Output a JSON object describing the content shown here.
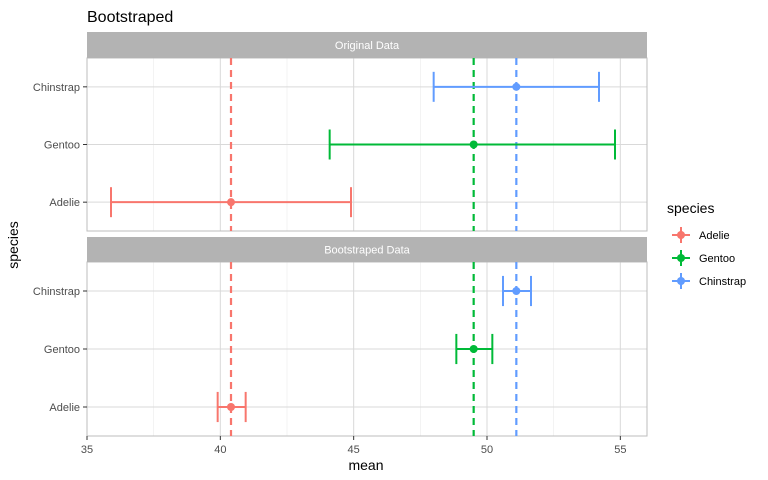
{
  "chart_data": {
    "type": "errorbar",
    "title": "Bootstraped",
    "xlabel": "mean",
    "ylabel": "species",
    "xlim": [
      35,
      56
    ],
    "x_ticks": [
      35,
      40,
      45,
      50,
      55
    ],
    "categories": [
      "Adelie",
      "Gentoo",
      "Chinstrap"
    ],
    "grid": true,
    "legend": {
      "title": "species",
      "position": "right",
      "entries": [
        "Adelie",
        "Gentoo",
        "Chinstrap"
      ]
    },
    "colors": {
      "Adelie": "#F8766D",
      "Gentoo": "#00BA38",
      "Chinstrap": "#619CFF"
    },
    "reference_lines": {
      "Adelie": 40.4,
      "Gentoo": 49.5,
      "Chinstrap": 51.1
    },
    "panels": [
      {
        "label": "Original Data",
        "series": [
          {
            "species": "Adelie",
            "mean": 40.4,
            "low": 35.9,
            "high": 44.9
          },
          {
            "species": "Gentoo",
            "mean": 49.5,
            "low": 44.1,
            "high": 54.8
          },
          {
            "species": "Chinstrap",
            "mean": 51.1,
            "low": 48.0,
            "high": 54.2
          }
        ]
      },
      {
        "label": "Bootstraped Data",
        "series": [
          {
            "species": "Adelie",
            "mean": 40.4,
            "low": 39.9,
            "high": 40.95
          },
          {
            "species": "Gentoo",
            "mean": 49.5,
            "low": 48.85,
            "high": 50.2
          },
          {
            "species": "Chinstrap",
            "mean": 51.1,
            "low": 50.6,
            "high": 51.65
          }
        ]
      }
    ]
  }
}
